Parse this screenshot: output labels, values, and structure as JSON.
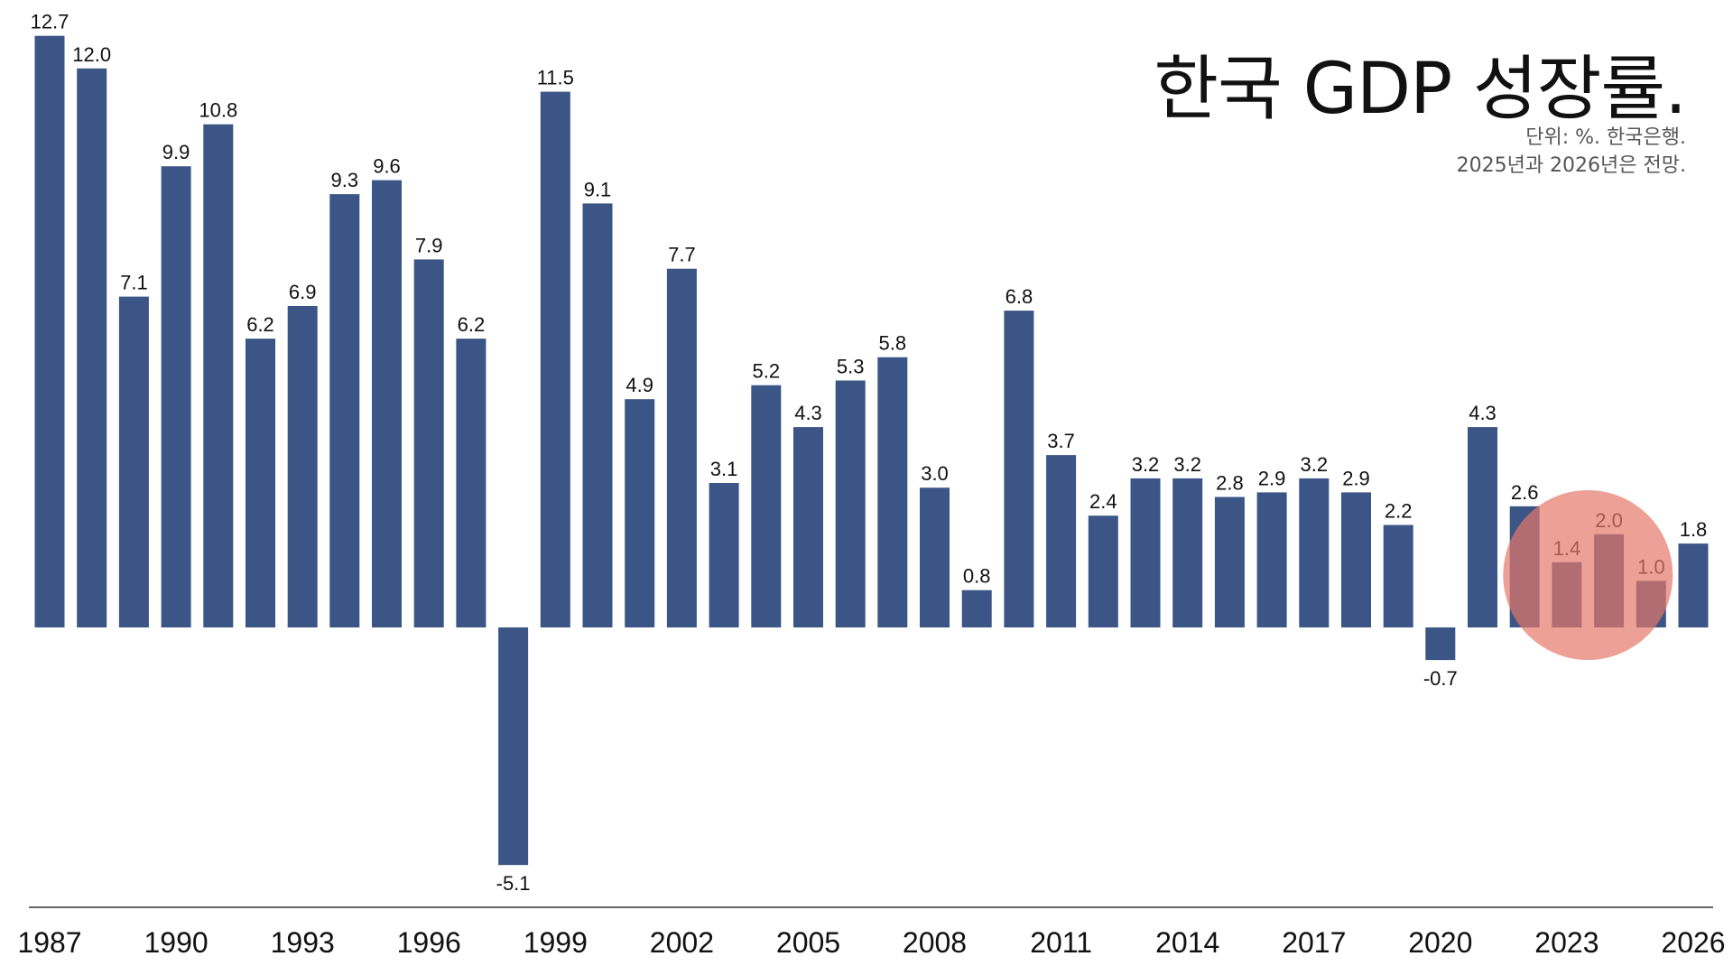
{
  "header": {
    "title": "한국 GDP 성장률.",
    "unit_note": "단위: %. 한국은행.",
    "forecast_note": "2025년과 2026년은 전망."
  },
  "colors": {
    "bar": "#3a5586",
    "highlight": "#e5776a",
    "axis": "#333333"
  },
  "chart_data": {
    "type": "bar",
    "title": "한국 GDP 성장률.",
    "xlabel": "",
    "ylabel": "",
    "grid": false,
    "legend": "none",
    "categories": [
      "1987",
      "1988",
      "1989",
      "1990",
      "1991",
      "1992",
      "1993",
      "1994",
      "1995",
      "1996",
      "1997",
      "1998",
      "1999",
      "2000",
      "2001",
      "2002",
      "2003",
      "2004",
      "2005",
      "2006",
      "2007",
      "2008",
      "2009",
      "2010",
      "2011",
      "2012",
      "2013",
      "2014",
      "2015",
      "2016",
      "2017",
      "2018",
      "2019",
      "2020",
      "2021",
      "2022",
      "2023",
      "2024",
      "2025",
      "2026"
    ],
    "values": [
      12.7,
      12.0,
      7.1,
      9.9,
      10.8,
      6.2,
      6.9,
      9.3,
      9.6,
      7.9,
      6.2,
      -5.1,
      11.5,
      9.1,
      4.9,
      7.7,
      3.1,
      5.2,
      4.3,
      5.3,
      5.8,
      3.0,
      0.8,
      6.8,
      3.7,
      2.4,
      3.2,
      3.2,
      2.8,
      2.9,
      3.2,
      2.9,
      2.2,
      -0.7,
      4.3,
      2.6,
      1.4,
      2.0,
      1.0,
      1.8
    ],
    "value_labels": [
      "12.7",
      "12.0",
      "7.1",
      "9.9",
      "10.8",
      "6.2",
      "6.9",
      "9.3",
      "9.6",
      "7.9",
      "6.2",
      "-5.1",
      "11.5",
      "9.1",
      "4.9",
      "7.7",
      "3.1",
      "5.2",
      "4.3",
      "5.3",
      "5.8",
      "3.0",
      "0.8",
      "6.8",
      "3.7",
      "2.4",
      "3.2",
      "3.2",
      "2.8",
      "2.9",
      "3.2",
      "2.9",
      "2.2",
      "-0.7",
      "4.3",
      "2.6",
      "1.4",
      "2.0",
      "1.0",
      "1.8"
    ],
    "x_tick_labels": [
      "1987",
      "1990",
      "1993",
      "1996",
      "1999",
      "2002",
      "2005",
      "2008",
      "2011",
      "2014",
      "2017",
      "2020",
      "2023",
      "2026"
    ],
    "highlight_categories": [
      "2022",
      "2023",
      "2024",
      "2025"
    ],
    "ylim": [
      -6,
      13
    ]
  }
}
